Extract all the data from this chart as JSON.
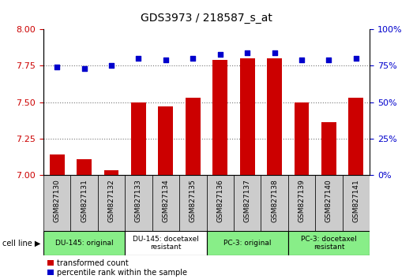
{
  "title": "GDS3973 / 218587_s_at",
  "samples": [
    "GSM827130",
    "GSM827131",
    "GSM827132",
    "GSM827133",
    "GSM827134",
    "GSM827135",
    "GSM827136",
    "GSM827137",
    "GSM827138",
    "GSM827139",
    "GSM827140",
    "GSM827141"
  ],
  "red_values": [
    7.14,
    7.11,
    7.03,
    7.5,
    7.47,
    7.53,
    7.79,
    7.8,
    7.8,
    7.5,
    7.36,
    7.53
  ],
  "blue_values": [
    74,
    73,
    75,
    80,
    79,
    80,
    83,
    84,
    84,
    79,
    79,
    80
  ],
  "ylim_left": [
    7.0,
    8.0
  ],
  "ylim_right": [
    0,
    100
  ],
  "yticks_left": [
    7.0,
    7.25,
    7.5,
    7.75,
    8.0
  ],
  "yticks_right": [
    0,
    25,
    50,
    75,
    100
  ],
  "grid_yticks": [
    7.25,
    7.5,
    7.75
  ],
  "cell_groups": [
    {
      "label": "DU-145: original",
      "start": 0,
      "end": 3,
      "color": "#88ee88"
    },
    {
      "label": "DU-145: docetaxel\nresistant",
      "start": 3,
      "end": 6,
      "color": "#ffffff"
    },
    {
      "label": "PC-3: original",
      "start": 6,
      "end": 9,
      "color": "#88ee88"
    },
    {
      "label": "PC-3: docetaxel\nresistant",
      "start": 9,
      "end": 12,
      "color": "#88ee88"
    }
  ],
  "bar_color": "#cc0000",
  "dot_color": "#0000cc",
  "plot_bg": "#ffffff",
  "xtick_box_color": "#cccccc",
  "grid_color": "#777777",
  "left_label_color": "#cc0000",
  "right_label_color": "#0000cc",
  "legend_red": "transformed count",
  "legend_blue": "percentile rank within the sample",
  "cell_line_label": "cell line"
}
